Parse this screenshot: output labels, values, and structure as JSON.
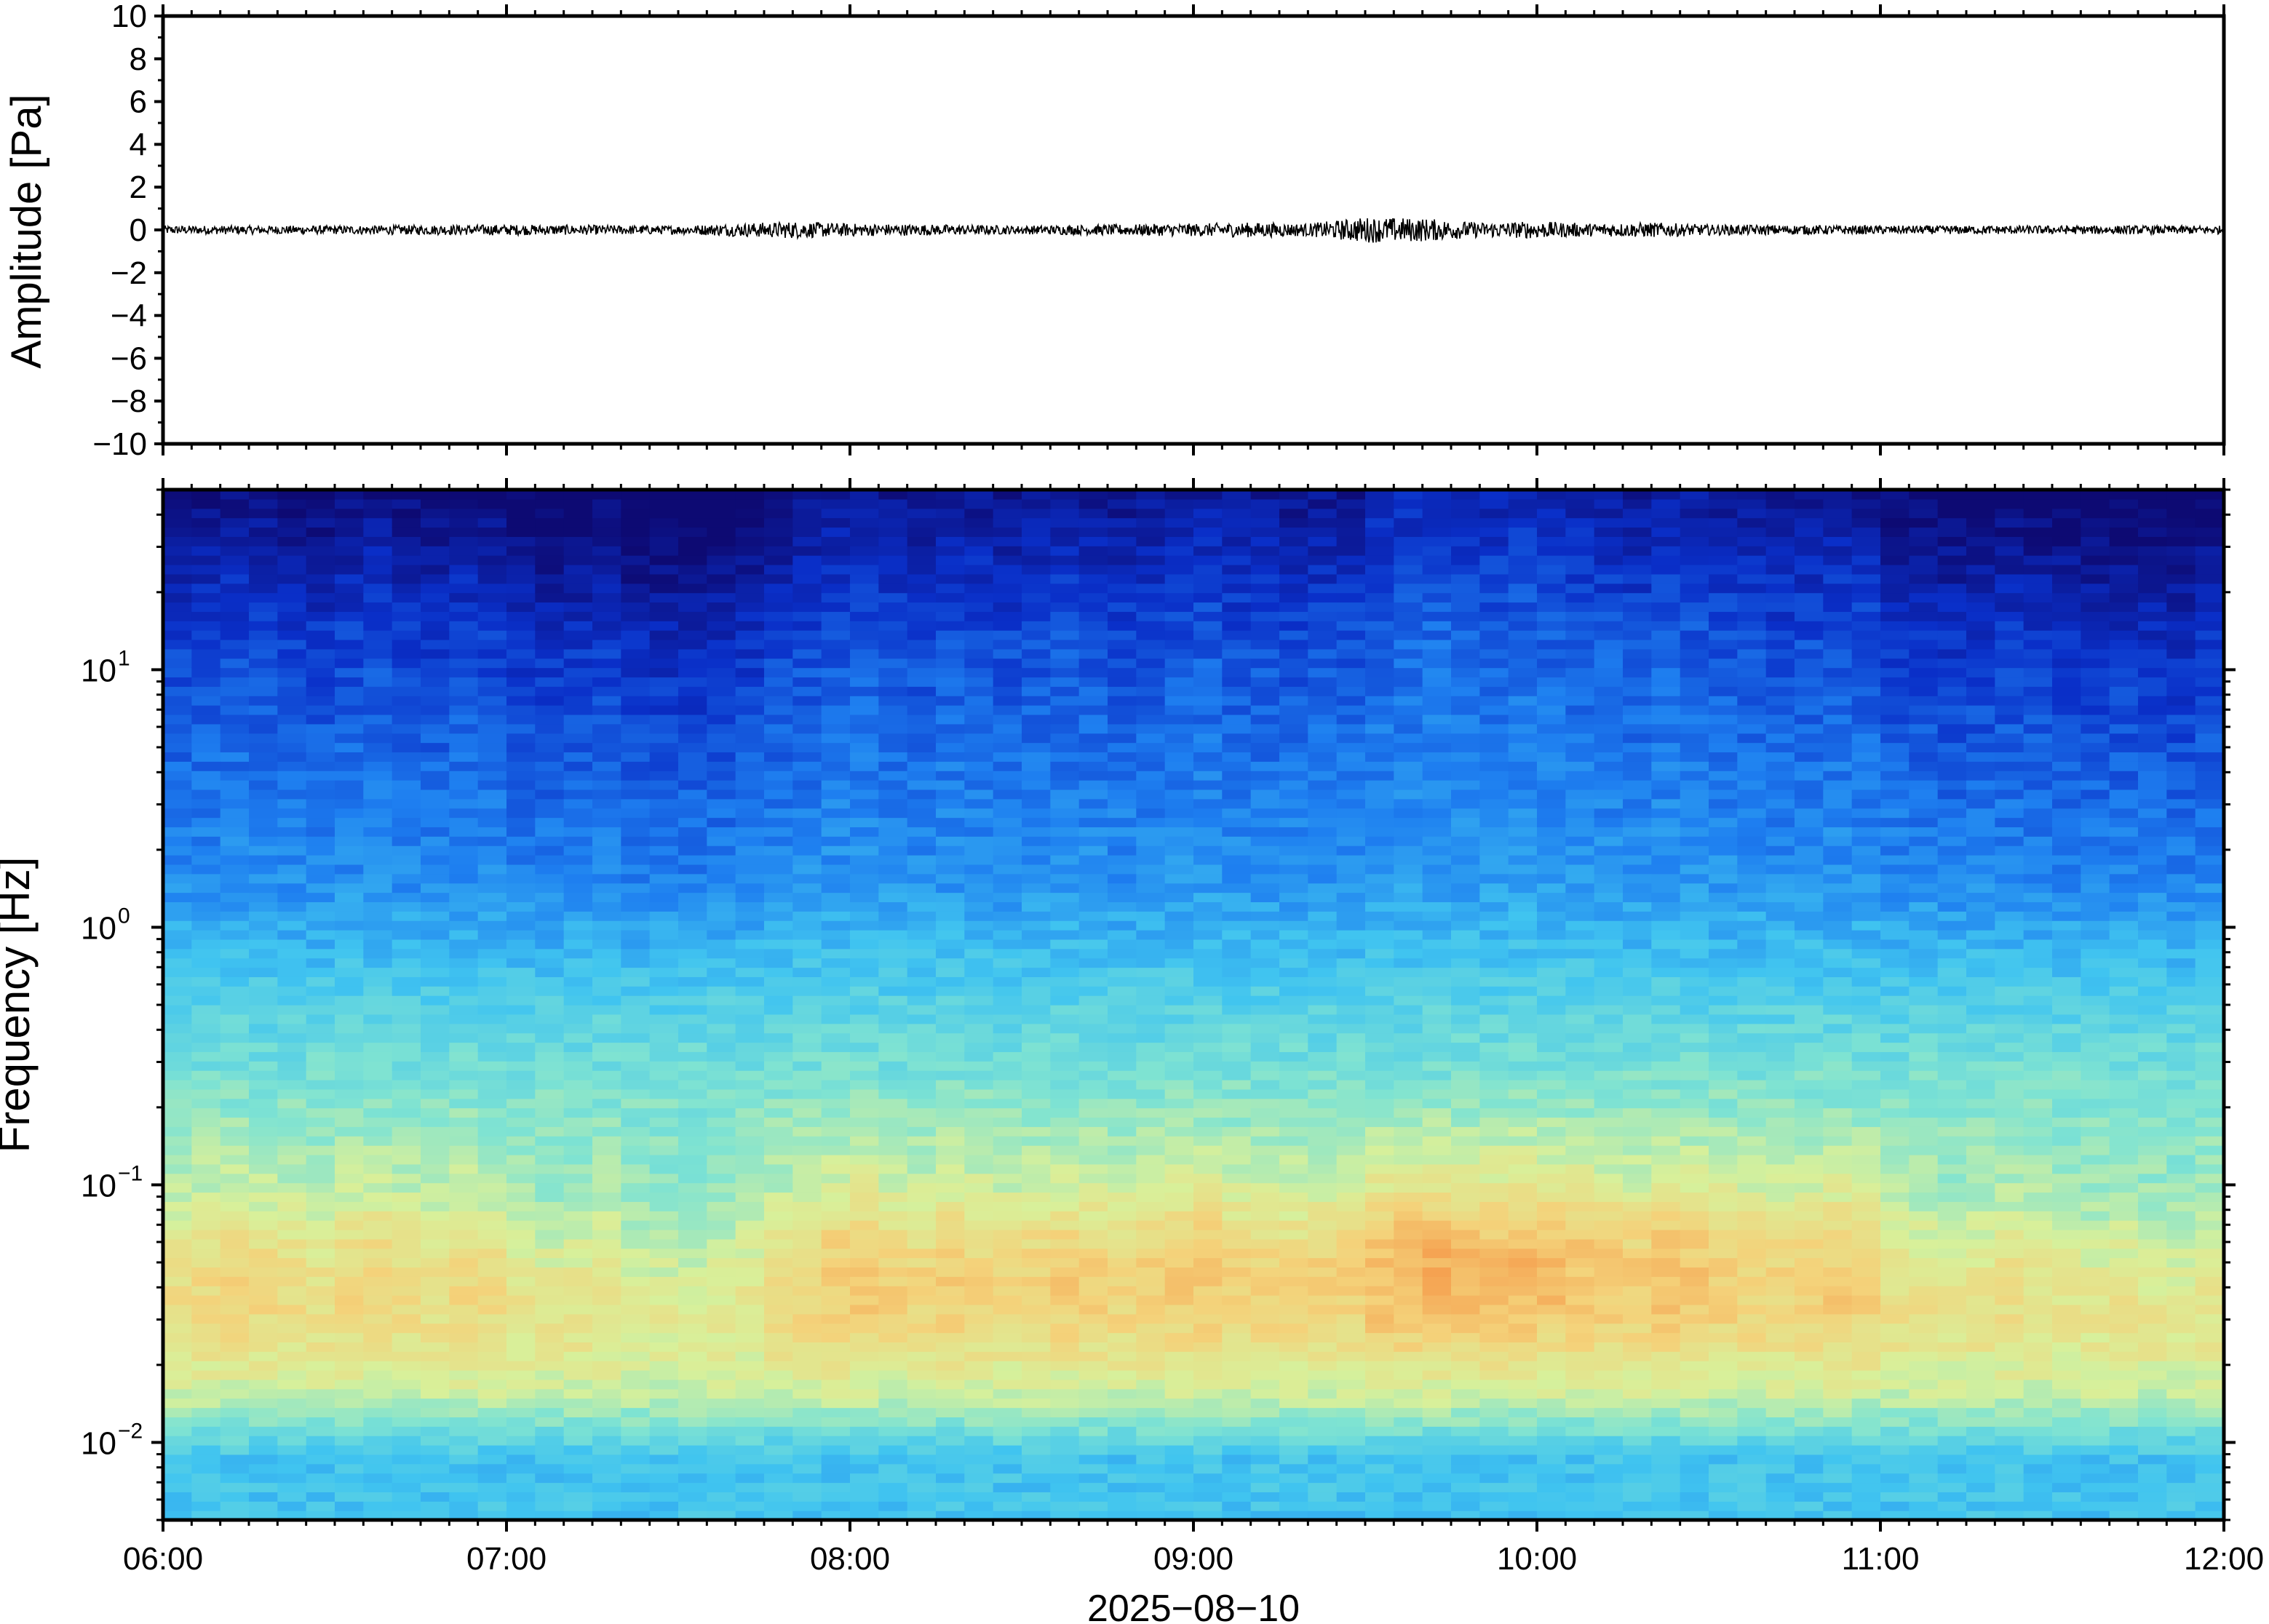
{
  "chart_data": [
    {
      "type": "line",
      "ylabel": "Amplitude [Pa]",
      "ylim": [
        -10,
        10
      ],
      "yticks": [
        "10",
        "8",
        "6",
        "4",
        "2",
        "0",
        "−2",
        "−4",
        "−6",
        "−8",
        "−10"
      ],
      "ytick_values": [
        10,
        8,
        6,
        4,
        2,
        0,
        -2,
        -4,
        -6,
        -8,
        -10
      ],
      "xlim": [
        "06:00",
        "12:00"
      ],
      "grid": false,
      "series": [
        {
          "x_minutes_from_start": [
            0,
            30,
            60,
            90,
            100,
            110,
            120,
            150,
            180,
            190,
            200,
            210,
            220,
            230,
            240,
            250,
            260,
            270,
            300,
            330,
            360
          ],
          "envelope": [
            0.2,
            0.2,
            0.25,
            0.2,
            0.3,
            0.4,
            0.3,
            0.2,
            0.3,
            0.35,
            0.3,
            0.6,
            0.55,
            0.35,
            0.4,
            0.3,
            0.35,
            0.25,
            0.2,
            0.2,
            0.2
          ],
          "color": "#000000"
        }
      ]
    },
    {
      "type": "heatmap",
      "ylabel": "Frequency [Hz]",
      "yscale": "log",
      "ylim": [
        0.005,
        50
      ],
      "yticks": [
        {
          "value": 0.01,
          "base": "10",
          "exp": "−2"
        },
        {
          "value": 0.1,
          "base": "10",
          "exp": "−1"
        },
        {
          "value": 1,
          "base": "10",
          "exp": "0"
        },
        {
          "value": 10,
          "base": "10",
          "exp": "1"
        }
      ],
      "xlabel": "2025−08−10",
      "xticks": [
        "06:00",
        "07:00",
        "08:00",
        "09:00",
        "10:00",
        "11:00",
        "12:00"
      ],
      "colormap": [
        "#0d0a73",
        "#0a2fc8",
        "#1e7ff0",
        "#40c4f0",
        "#7fe3d2",
        "#d8f09a",
        "#f4d27a",
        "#f59a4a",
        "#e0482a"
      ],
      "grid": false,
      "column_activity": [
        0.35,
        0.4,
        0.45,
        0.4,
        0.35,
        0.3,
        0.4,
        0.45,
        0.35,
        0.3,
        0.4,
        0.35,
        0.2,
        0.15,
        0.2,
        0.25,
        0.1,
        0.05,
        0.05,
        0.1,
        0.15,
        0.35,
        0.45,
        0.55,
        0.6,
        0.5,
        0.45,
        0.55,
        0.5,
        0.45,
        0.5,
        0.55,
        0.5,
        0.45,
        0.5,
        0.55,
        0.6,
        0.5,
        0.5,
        0.45,
        0.5,
        0.5,
        0.7,
        0.75,
        0.8,
        0.75,
        0.7,
        0.75,
        0.7,
        0.65,
        0.6,
        0.55,
        0.65,
        0.6,
        0.55,
        0.5,
        0.45,
        0.5,
        0.55,
        0.5,
        0.3,
        0.25,
        0.2,
        0.25,
        0.3,
        0.25,
        0.2,
        0.15,
        0.2,
        0.15,
        0.1,
        0.2
      ]
    }
  ]
}
